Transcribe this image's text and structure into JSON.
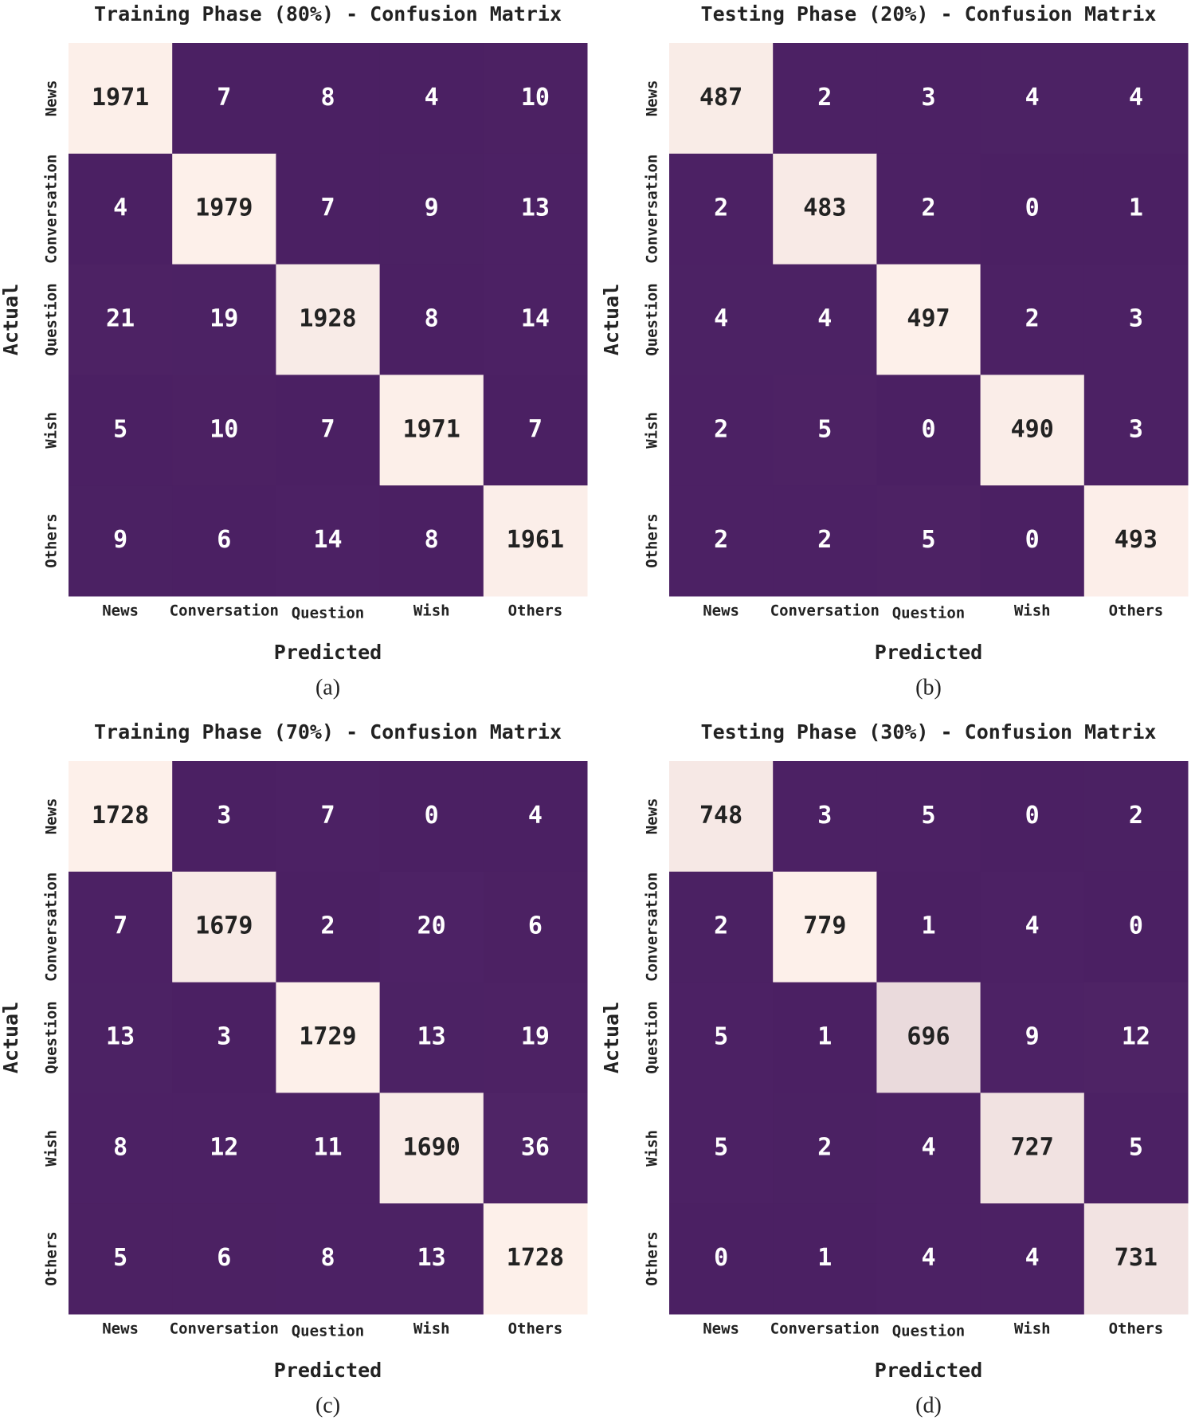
{
  "chart_data": [
    {
      "type": "heatmap",
      "title": "Training Phase (80%) - Confusion Matrix",
      "xlabel": "Predicted",
      "ylabel": "Actual",
      "caption": "(a)",
      "x_categories": [
        "News",
        "Conversation",
        "Question",
        "Wish",
        "Others"
      ],
      "y_categories": [
        "News",
        "Conversation",
        "Question",
        "Wish",
        "Others"
      ],
      "values": [
        [
          1971,
          7,
          8,
          4,
          10
        ],
        [
          4,
          1979,
          7,
          9,
          13
        ],
        [
          21,
          19,
          1928,
          8,
          14
        ],
        [
          5,
          10,
          7,
          1971,
          7
        ],
        [
          9,
          6,
          14,
          8,
          1961
        ]
      ],
      "colors": [
        "#4b2063",
        "#fdf0ea"
      ]
    },
    {
      "type": "heatmap",
      "title": "Testing Phase (20%) - Confusion Matrix",
      "xlabel": "Predicted",
      "ylabel": "Actual",
      "caption": "(b)",
      "x_categories": [
        "News",
        "Conversation",
        "Question",
        "Wish",
        "Others"
      ],
      "y_categories": [
        "News",
        "Conversation",
        "Question",
        "Wish",
        "Others"
      ],
      "values": [
        [
          487,
          2,
          3,
          4,
          4
        ],
        [
          2,
          483,
          2,
          0,
          1
        ],
        [
          4,
          4,
          497,
          2,
          3
        ],
        [
          2,
          5,
          0,
          490,
          3
        ],
        [
          2,
          2,
          5,
          0,
          493
        ]
      ],
      "colors": [
        "#4b2063",
        "#fdf0ea"
      ]
    },
    {
      "type": "heatmap",
      "title": "Training Phase (70%) - Confusion Matrix",
      "xlabel": "Predicted",
      "ylabel": "Actual",
      "caption": "(c)",
      "x_categories": [
        "News",
        "Conversation",
        "Question",
        "Wish",
        "Others"
      ],
      "y_categories": [
        "News",
        "Conversation",
        "Question",
        "Wish",
        "Others"
      ],
      "values": [
        [
          1728,
          3,
          7,
          0,
          4
        ],
        [
          7,
          1679,
          2,
          20,
          6
        ],
        [
          13,
          3,
          1729,
          13,
          19
        ],
        [
          8,
          12,
          11,
          1690,
          36
        ],
        [
          5,
          6,
          8,
          13,
          1728
        ]
      ],
      "colors": [
        "#4b2063",
        "#fdf0ea"
      ]
    },
    {
      "type": "heatmap",
      "title": "Testing Phase (30%) - Confusion Matrix",
      "xlabel": "Predicted",
      "ylabel": "Actual",
      "caption": "(d)",
      "x_categories": [
        "News",
        "Conversation",
        "Question",
        "Wish",
        "Others"
      ],
      "y_categories": [
        "News",
        "Conversation",
        "Question",
        "Wish",
        "Others"
      ],
      "values": [
        [
          748,
          3,
          5,
          0,
          2
        ],
        [
          2,
          779,
          1,
          4,
          0
        ],
        [
          5,
          1,
          696,
          9,
          12
        ],
        [
          5,
          2,
          4,
          727,
          5
        ],
        [
          0,
          1,
          4,
          4,
          731
        ]
      ],
      "colors": [
        "#4b2063",
        "#fdf0ea"
      ]
    }
  ]
}
